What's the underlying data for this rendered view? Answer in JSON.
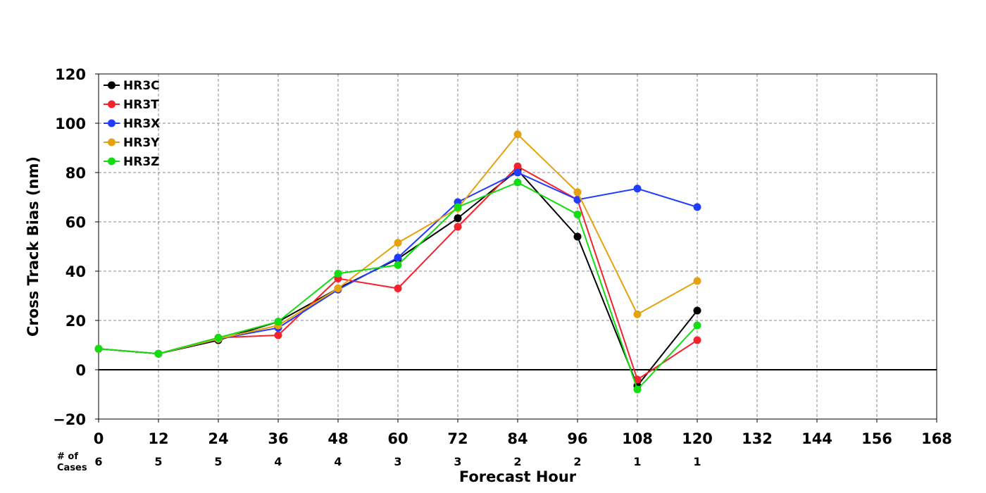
{
  "chart_data": {
    "type": "line",
    "title": "",
    "xlabel": "Forecast Hour",
    "ylabel": "Cross Track Bias (nm)",
    "xlim": [
      0,
      168
    ],
    "ylim": [
      -20,
      120
    ],
    "x_ticks": [
      0,
      12,
      24,
      36,
      48,
      60,
      72,
      84,
      96,
      108,
      120,
      132,
      144,
      156,
      168
    ],
    "y_ticks": [
      -20,
      0,
      20,
      40,
      60,
      80,
      100,
      120
    ],
    "y_tick_labels": [
      "−20",
      "0",
      "20",
      "40",
      "60",
      "80",
      "100",
      "120"
    ],
    "grid": true,
    "legend_position": "top-left",
    "cases_label": "# of\nCases",
    "cases_label_lines": [
      "# of",
      "Cases"
    ],
    "cases": [
      {
        "x": 0,
        "n": "6"
      },
      {
        "x": 12,
        "n": "5"
      },
      {
        "x": 24,
        "n": "5"
      },
      {
        "x": 36,
        "n": "4"
      },
      {
        "x": 48,
        "n": "4"
      },
      {
        "x": 60,
        "n": "3"
      },
      {
        "x": 72,
        "n": "3"
      },
      {
        "x": 84,
        "n": "2"
      },
      {
        "x": 96,
        "n": "2"
      },
      {
        "x": 108,
        "n": "1"
      },
      {
        "x": 120,
        "n": "1"
      }
    ],
    "series": [
      {
        "name": "HR3C",
        "color": "#000000",
        "x": [
          0,
          12,
          24,
          36,
          48,
          60,
          72,
          84,
          96,
          108,
          120
        ],
        "y": [
          8.5,
          6.5,
          12,
          19.5,
          33,
          45,
          61.5,
          81,
          54,
          -6.5,
          24
        ]
      },
      {
        "name": "HR3T",
        "color": "#f5222d",
        "x": [
          0,
          12,
          24,
          36,
          48,
          60,
          72,
          84,
          96,
          108,
          120
        ],
        "y": [
          8.5,
          6.5,
          13,
          14,
          37,
          33,
          58,
          82.5,
          69,
          -4,
          12
        ]
      },
      {
        "name": "HR3X",
        "color": "#1f3cff",
        "x": [
          0,
          12,
          24,
          36,
          48,
          60,
          72,
          84,
          96,
          108,
          120
        ],
        "y": [
          8.5,
          6.5,
          12.5,
          17,
          32.5,
          45.5,
          68,
          80,
          69,
          73.5,
          66
        ]
      },
      {
        "name": "HR3Y",
        "color": "#e6a10f",
        "x": [
          0,
          12,
          24,
          36,
          48,
          60,
          72,
          84,
          96,
          108,
          120
        ],
        "y": [
          8.5,
          6.5,
          12.5,
          18,
          33,
          51.5,
          65.5,
          95.5,
          72,
          22.5,
          36
        ]
      },
      {
        "name": "HR3Z",
        "color": "#12dd12",
        "x": [
          0,
          12,
          24,
          36,
          48,
          60,
          72,
          84,
          96,
          108,
          120
        ],
        "y": [
          8.5,
          6.5,
          13,
          19.5,
          39,
          42.5,
          66,
          76,
          63,
          -8,
          18
        ]
      }
    ]
  }
}
